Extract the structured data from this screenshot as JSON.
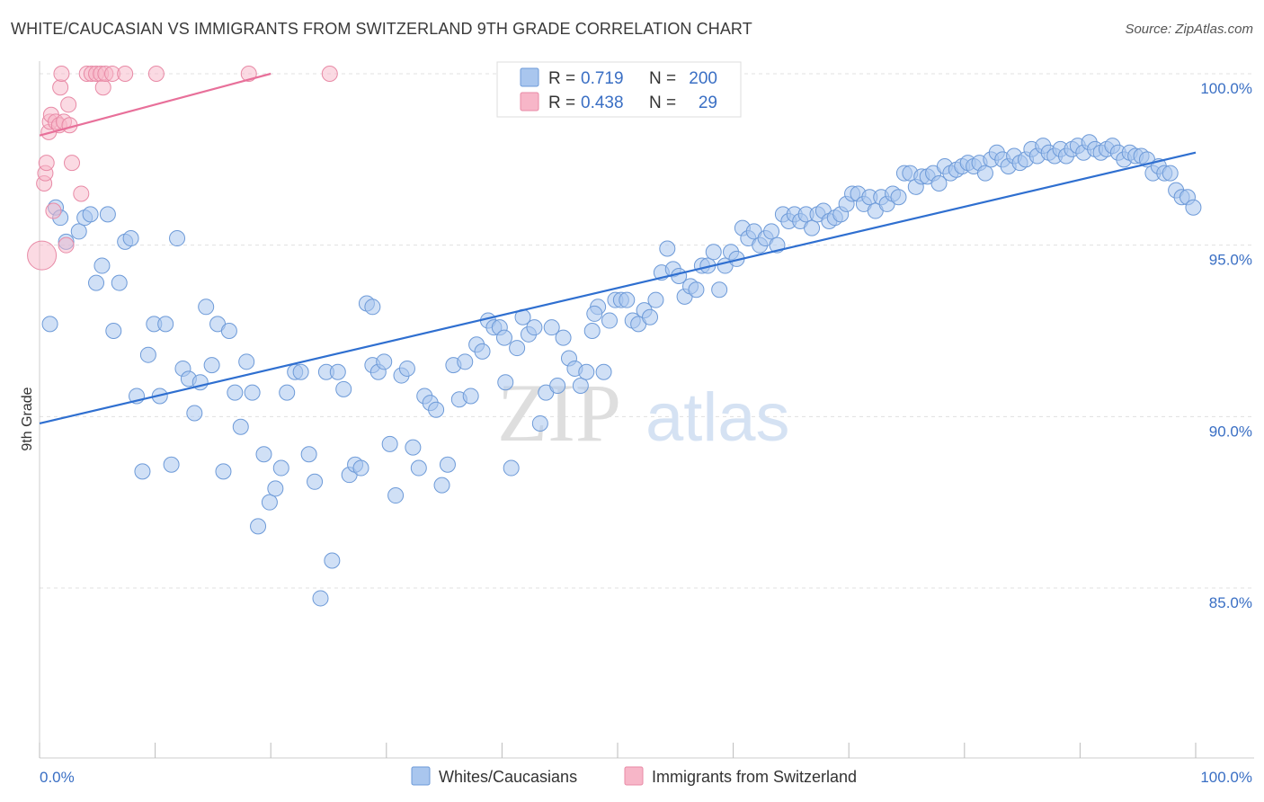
{
  "header": {
    "title": "WHITE/CAUCASIAN VS IMMIGRANTS FROM SWITZERLAND 9TH GRADE CORRELATION CHART",
    "source": "Source: ZipAtlas.com"
  },
  "watermark": {
    "zip": "ZIP",
    "atlas": "atlas"
  },
  "legend": {
    "r_label": "R =",
    "n_label": "N =",
    "rows": [
      {
        "r": "0.719",
        "n": "200",
        "color": "#a9c6ee"
      },
      {
        "r": "0.438",
        "n": "29",
        "color": "#f7b6c8"
      }
    ]
  },
  "colors": {
    "blue_fill": "#a9c6ee",
    "blue_stroke": "#6d9ad8",
    "blue_line": "#2f6fd0",
    "pink_fill": "#f7b6c8",
    "pink_stroke": "#e88aa6",
    "pink_line": "#e8709a",
    "grid": "#e0e0e0",
    "axis_text": "#3a6fc4"
  },
  "chart_data": {
    "type": "scatter",
    "title": "WHITE/CAUCASIAN VS IMMIGRANTS FROM SWITZERLAND 9TH GRADE CORRELATION CHART",
    "xlabel": "",
    "ylabel": "9th Grade",
    "xlim": [
      0,
      100
    ],
    "ylim": [
      80.5,
      100.5
    ],
    "x_tick_labels": [
      "0.0%",
      "100.0%"
    ],
    "y_ticks": [
      85,
      90,
      95,
      100
    ],
    "y_tick_labels": [
      "85.0%",
      "90.0%",
      "95.0%",
      "100.0%"
    ],
    "grid": true,
    "legend_position": "bottom-center",
    "series": [
      {
        "name": "Whites/Caucasians",
        "color": "#a9c6ee",
        "trend": {
          "x": [
            0,
            100
          ],
          "y": [
            89.8,
            97.7
          ]
        },
        "points": [
          [
            0.9,
            92.7
          ],
          [
            1.4,
            96.1
          ],
          [
            1.8,
            95.8
          ],
          [
            2.3,
            95.1
          ],
          [
            3.4,
            95.4
          ],
          [
            3.9,
            95.8
          ],
          [
            4.4,
            95.9
          ],
          [
            4.9,
            93.9
          ],
          [
            5.4,
            94.4
          ],
          [
            5.9,
            95.9
          ],
          [
            6.4,
            92.5
          ],
          [
            6.9,
            93.9
          ],
          [
            7.4,
            95.1
          ],
          [
            7.9,
            95.2
          ],
          [
            8.4,
            90.6
          ],
          [
            8.9,
            88.4
          ],
          [
            9.4,
            91.8
          ],
          [
            9.9,
            92.7
          ],
          [
            10.4,
            90.6
          ],
          [
            10.9,
            92.7
          ],
          [
            11.4,
            88.6
          ],
          [
            11.9,
            95.2
          ],
          [
            12.4,
            91.4
          ],
          [
            12.9,
            91.1
          ],
          [
            13.4,
            90.1
          ],
          [
            13.9,
            91.0
          ],
          [
            14.4,
            93.2
          ],
          [
            14.9,
            91.5
          ],
          [
            15.4,
            92.7
          ],
          [
            15.9,
            88.4
          ],
          [
            16.4,
            92.5
          ],
          [
            16.9,
            90.7
          ],
          [
            17.4,
            89.7
          ],
          [
            17.9,
            91.6
          ],
          [
            18.4,
            90.7
          ],
          [
            18.9,
            86.8
          ],
          [
            19.4,
            88.9
          ],
          [
            19.9,
            87.5
          ],
          [
            20.4,
            87.9
          ],
          [
            20.9,
            88.5
          ],
          [
            21.4,
            90.7
          ],
          [
            22.1,
            91.3
          ],
          [
            22.6,
            91.3
          ],
          [
            23.3,
            88.9
          ],
          [
            23.8,
            88.1
          ],
          [
            24.3,
            84.7
          ],
          [
            24.8,
            91.3
          ],
          [
            25.3,
            85.8
          ],
          [
            25.8,
            91.3
          ],
          [
            26.3,
            90.8
          ],
          [
            26.8,
            88.3
          ],
          [
            27.3,
            88.6
          ],
          [
            27.8,
            88.5
          ],
          [
            28.3,
            93.3
          ],
          [
            28.8,
            91.5
          ],
          [
            29.3,
            91.3
          ],
          [
            29.8,
            91.6
          ],
          [
            30.3,
            89.2
          ],
          [
            30.8,
            87.7
          ],
          [
            31.3,
            91.2
          ],
          [
            31.8,
            91.4
          ],
          [
            32.3,
            89.1
          ],
          [
            32.8,
            88.5
          ],
          [
            33.3,
            90.6
          ],
          [
            33.8,
            90.4
          ],
          [
            34.3,
            90.2
          ],
          [
            34.8,
            88.0
          ],
          [
            35.3,
            88.6
          ],
          [
            35.8,
            91.5
          ],
          [
            36.3,
            90.5
          ],
          [
            36.8,
            91.6
          ],
          [
            37.3,
            90.6
          ],
          [
            37.8,
            92.1
          ],
          [
            38.3,
            91.9
          ],
          [
            38.8,
            92.8
          ],
          [
            39.3,
            92.6
          ],
          [
            39.8,
            92.6
          ],
          [
            40.3,
            91.0
          ],
          [
            40.8,
            88.5
          ],
          [
            41.3,
            92.0
          ],
          [
            41.8,
            92.9
          ],
          [
            42.3,
            92.4
          ],
          [
            42.8,
            92.6
          ],
          [
            43.3,
            89.8
          ],
          [
            43.8,
            90.7
          ],
          [
            44.3,
            92.6
          ],
          [
            44.8,
            90.9
          ],
          [
            45.3,
            92.3
          ],
          [
            45.8,
            91.7
          ],
          [
            46.3,
            91.4
          ],
          [
            46.8,
            90.9
          ],
          [
            47.3,
            91.3
          ],
          [
            47.8,
            92.5
          ],
          [
            48.3,
            93.2
          ],
          [
            48.8,
            91.3
          ],
          [
            49.3,
            92.8
          ],
          [
            49.8,
            93.4
          ],
          [
            50.3,
            93.4
          ],
          [
            50.8,
            93.4
          ],
          [
            51.3,
            92.8
          ],
          [
            51.8,
            92.7
          ],
          [
            52.3,
            93.1
          ],
          [
            52.8,
            92.9
          ],
          [
            53.3,
            93.4
          ],
          [
            53.8,
            94.2
          ],
          [
            54.3,
            94.9
          ],
          [
            54.8,
            94.3
          ],
          [
            55.3,
            94.1
          ],
          [
            55.8,
            93.5
          ],
          [
            56.3,
            93.8
          ],
          [
            56.8,
            93.7
          ],
          [
            57.3,
            94.4
          ],
          [
            57.8,
            94.4
          ],
          [
            58.3,
            94.8
          ],
          [
            58.8,
            93.7
          ],
          [
            59.3,
            94.4
          ],
          [
            59.8,
            94.8
          ],
          [
            60.3,
            94.6
          ],
          [
            60.8,
            95.5
          ],
          [
            61.3,
            95.2
          ],
          [
            61.8,
            95.4
          ],
          [
            62.3,
            95.0
          ],
          [
            62.8,
            95.2
          ],
          [
            63.3,
            95.4
          ],
          [
            63.8,
            95.0
          ],
          [
            64.3,
            95.9
          ],
          [
            64.8,
            95.7
          ],
          [
            65.3,
            95.9
          ],
          [
            65.8,
            95.7
          ],
          [
            66.3,
            95.9
          ],
          [
            66.8,
            95.5
          ],
          [
            67.3,
            95.9
          ],
          [
            67.8,
            96.0
          ],
          [
            68.3,
            95.7
          ],
          [
            68.8,
            95.8
          ],
          [
            69.3,
            95.9
          ],
          [
            69.8,
            96.2
          ],
          [
            70.3,
            96.5
          ],
          [
            70.8,
            96.5
          ],
          [
            71.3,
            96.2
          ],
          [
            71.8,
            96.4
          ],
          [
            72.3,
            96.0
          ],
          [
            72.8,
            96.4
          ],
          [
            73.3,
            96.2
          ],
          [
            73.8,
            96.5
          ],
          [
            74.3,
            96.4
          ],
          [
            74.8,
            97.1
          ],
          [
            75.3,
            97.1
          ],
          [
            75.8,
            96.7
          ],
          [
            76.3,
            97.0
          ],
          [
            76.8,
            97.0
          ],
          [
            77.3,
            97.1
          ],
          [
            77.8,
            96.8
          ],
          [
            78.3,
            97.3
          ],
          [
            78.8,
            97.1
          ],
          [
            79.3,
            97.2
          ],
          [
            79.8,
            97.3
          ],
          [
            80.3,
            97.4
          ],
          [
            80.8,
            97.3
          ],
          [
            81.3,
            97.4
          ],
          [
            81.8,
            97.1
          ],
          [
            82.3,
            97.5
          ],
          [
            82.8,
            97.7
          ],
          [
            83.3,
            97.5
          ],
          [
            83.8,
            97.3
          ],
          [
            84.3,
            97.6
          ],
          [
            84.8,
            97.4
          ],
          [
            85.3,
            97.5
          ],
          [
            85.8,
            97.8
          ],
          [
            86.3,
            97.6
          ],
          [
            86.8,
            97.9
          ],
          [
            87.3,
            97.7
          ],
          [
            87.8,
            97.6
          ],
          [
            88.3,
            97.8
          ],
          [
            88.8,
            97.6
          ],
          [
            89.3,
            97.8
          ],
          [
            89.8,
            97.9
          ],
          [
            90.3,
            97.7
          ],
          [
            90.8,
            98.0
          ],
          [
            91.3,
            97.8
          ],
          [
            91.8,
            97.7
          ],
          [
            92.3,
            97.8
          ],
          [
            92.8,
            97.9
          ],
          [
            93.3,
            97.7
          ],
          [
            93.8,
            97.5
          ],
          [
            94.3,
            97.7
          ],
          [
            94.8,
            97.6
          ],
          [
            95.3,
            97.6
          ],
          [
            95.8,
            97.5
          ],
          [
            96.3,
            97.1
          ],
          [
            96.8,
            97.3
          ],
          [
            97.3,
            97.1
          ],
          [
            97.8,
            97.1
          ],
          [
            98.3,
            96.6
          ],
          [
            98.8,
            96.4
          ],
          [
            99.3,
            96.4
          ],
          [
            99.8,
            96.1
          ],
          [
            40.2,
            92.3
          ],
          [
            48.0,
            93.0
          ],
          [
            28.8,
            93.2
          ]
        ]
      },
      {
        "name": "Immigrants from Switzerland",
        "color": "#f7b6c8",
        "trend": {
          "x": [
            0,
            20
          ],
          "y": [
            98.2,
            100.0
          ]
        },
        "points": [
          [
            0.2,
            94.7
          ],
          [
            0.4,
            96.8
          ],
          [
            0.5,
            97.1
          ],
          [
            0.6,
            97.4
          ],
          [
            0.8,
            98.3
          ],
          [
            0.9,
            98.6
          ],
          [
            1.0,
            98.8
          ],
          [
            1.2,
            96.0
          ],
          [
            1.4,
            98.6
          ],
          [
            1.7,
            98.5
          ],
          [
            1.8,
            99.6
          ],
          [
            1.9,
            100.0
          ],
          [
            2.1,
            98.6
          ],
          [
            2.3,
            95.0
          ],
          [
            2.5,
            99.1
          ],
          [
            2.6,
            98.5
          ],
          [
            2.8,
            97.4
          ],
          [
            3.6,
            96.5
          ],
          [
            4.1,
            100.0
          ],
          [
            4.5,
            100.0
          ],
          [
            4.9,
            100.0
          ],
          [
            5.3,
            100.0
          ],
          [
            5.5,
            99.6
          ],
          [
            5.7,
            100.0
          ],
          [
            6.3,
            100.0
          ],
          [
            7.4,
            100.0
          ],
          [
            10.1,
            100.0
          ],
          [
            18.1,
            100.0
          ],
          [
            25.1,
            100.0
          ]
        ]
      }
    ]
  }
}
